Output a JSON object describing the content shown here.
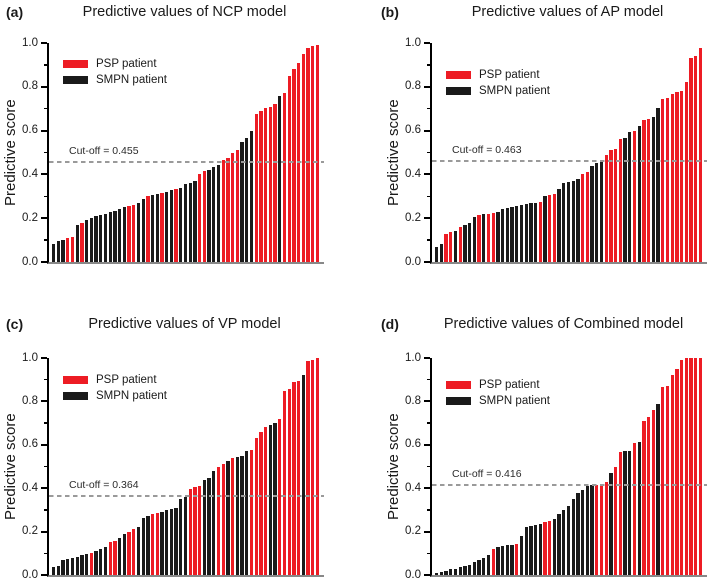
{
  "colors": {
    "psp": "#ed1c24",
    "smpn": "#1a1a1a",
    "axis": "#000000",
    "baseline": "#888888",
    "cutoff_line": "#9a9a9a"
  },
  "chart_data": {
    "type": "bar",
    "ylim": [
      0,
      1
    ],
    "grid": false,
    "yticks": [
      {
        "v": 0.0,
        "label": "0.0"
      },
      {
        "v": 0.2,
        "label": "0.2"
      },
      {
        "v": 0.4,
        "label": "0.4"
      },
      {
        "v": 0.6,
        "label": "0.6"
      },
      {
        "v": 0.8,
        "label": "0.8"
      },
      {
        "v": 1.0,
        "label": "1.0"
      }
    ],
    "yticks_minor": [
      0.1,
      0.3,
      0.5,
      0.7,
      0.9
    ],
    "legend": [
      {
        "label": "PSP patient",
        "group": "P"
      },
      {
        "label": "SMPN patient",
        "group": "S"
      }
    ],
    "panels": [
      {
        "letter": "(a)",
        "title": "Predictive values of NCP model",
        "ylabel": "Predictive score",
        "cutoff": 0.455,
        "cutoff_label": "Cut-off = 0.455",
        "values": [
          0.08,
          0.095,
          0.1,
          0.11,
          0.115,
          0.17,
          0.18,
          0.19,
          0.2,
          0.21,
          0.215,
          0.22,
          0.23,
          0.235,
          0.24,
          0.25,
          0.255,
          0.26,
          0.27,
          0.29,
          0.3,
          0.305,
          0.31,
          0.315,
          0.32,
          0.33,
          0.335,
          0.34,
          0.355,
          0.36,
          0.37,
          0.4,
          0.415,
          0.42,
          0.435,
          0.445,
          0.465,
          0.475,
          0.5,
          0.51,
          0.55,
          0.565,
          0.6,
          0.675,
          0.69,
          0.705,
          0.71,
          0.72,
          0.76,
          0.77,
          0.85,
          0.88,
          0.91,
          0.95,
          0.975,
          0.985,
          0.99
        ],
        "groups": [
          "S",
          "S",
          "S",
          "P",
          "P",
          "S",
          "P",
          "S",
          "S",
          "S",
          "S",
          "S",
          "S",
          "S",
          "S",
          "S",
          "P",
          "P",
          "S",
          "S",
          "P",
          "S",
          "S",
          "P",
          "S",
          "S",
          "P",
          "S",
          "S",
          "S",
          "S",
          "P",
          "P",
          "S",
          "S",
          "S",
          "P",
          "P",
          "P",
          "P",
          "S",
          "S",
          "S",
          "P",
          "P",
          "P",
          "P",
          "P",
          "S",
          "P",
          "P",
          "P",
          "P",
          "P",
          "P",
          "P",
          "P"
        ]
      },
      {
        "letter": "(b)",
        "title": "Predictive values of AP model",
        "ylabel": "Predictive score",
        "cutoff": 0.463,
        "cutoff_label": "Cut-off = 0.463",
        "values": [
          0.07,
          0.08,
          0.13,
          0.135,
          0.14,
          0.16,
          0.17,
          0.18,
          0.205,
          0.215,
          0.22,
          0.22,
          0.225,
          0.23,
          0.24,
          0.245,
          0.25,
          0.255,
          0.26,
          0.265,
          0.27,
          0.27,
          0.275,
          0.3,
          0.305,
          0.31,
          0.335,
          0.36,
          0.365,
          0.37,
          0.38,
          0.4,
          0.41,
          0.44,
          0.45,
          0.46,
          0.49,
          0.51,
          0.515,
          0.56,
          0.565,
          0.595,
          0.6,
          0.62,
          0.65,
          0.655,
          0.66,
          0.705,
          0.745,
          0.75,
          0.765,
          0.775,
          0.78,
          0.82,
          0.93,
          0.94,
          0.975
        ],
        "groups": [
          "S",
          "S",
          "P",
          "P",
          "S",
          "P",
          "S",
          "S",
          "S",
          "P",
          "S",
          "P",
          "P",
          "S",
          "S",
          "S",
          "S",
          "S",
          "S",
          "S",
          "S",
          "S",
          "P",
          "S",
          "P",
          "P",
          "S",
          "S",
          "S",
          "S",
          "S",
          "P",
          "P",
          "S",
          "S",
          "S",
          "P",
          "P",
          "P",
          "P",
          "S",
          "S",
          "P",
          "S",
          "P",
          "P",
          "S",
          "S",
          "P",
          "P",
          "P",
          "P",
          "P",
          "P",
          "P",
          "P",
          "P"
        ]
      },
      {
        "letter": "(c)",
        "title": "Predictive values of VP model",
        "ylabel": "Predictive score",
        "cutoff": 0.364,
        "cutoff_label": "Cut-off = 0.364",
        "values": [
          0.035,
          0.04,
          0.07,
          0.075,
          0.08,
          0.085,
          0.09,
          0.095,
          0.1,
          0.11,
          0.12,
          0.13,
          0.15,
          0.155,
          0.17,
          0.19,
          0.2,
          0.21,
          0.22,
          0.265,
          0.27,
          0.28,
          0.285,
          0.29,
          0.3,
          0.305,
          0.31,
          0.35,
          0.36,
          0.395,
          0.405,
          0.41,
          0.44,
          0.445,
          0.48,
          0.5,
          0.51,
          0.525,
          0.54,
          0.545,
          0.55,
          0.57,
          0.575,
          0.63,
          0.66,
          0.68,
          0.69,
          0.7,
          0.72,
          0.85,
          0.855,
          0.89,
          0.895,
          0.92,
          0.985,
          0.99,
          1.0
        ],
        "groups": [
          "S",
          "S",
          "S",
          "S",
          "S",
          "S",
          "S",
          "S",
          "P",
          "S",
          "S",
          "S",
          "P",
          "P",
          "S",
          "S",
          "P",
          "P",
          "S",
          "S",
          "S",
          "P",
          "P",
          "S",
          "S",
          "S",
          "S",
          "S",
          "S",
          "P",
          "P",
          "P",
          "S",
          "S",
          "S",
          "P",
          "P",
          "S",
          "P",
          "S",
          "S",
          "S",
          "P",
          "P",
          "P",
          "P",
          "S",
          "S",
          "P",
          "P",
          "P",
          "P",
          "P",
          "S",
          "P",
          "P",
          "P"
        ]
      },
      {
        "letter": "(d)",
        "title": "Predictive values of Combined model",
        "ylabel": "Predictive score",
        "cutoff": 0.416,
        "cutoff_label": "Cut-off = 0.416",
        "values": [
          0.01,
          0.015,
          0.02,
          0.03,
          0.03,
          0.035,
          0.04,
          0.045,
          0.06,
          0.07,
          0.08,
          0.09,
          0.12,
          0.13,
          0.135,
          0.14,
          0.14,
          0.145,
          0.18,
          0.22,
          0.225,
          0.23,
          0.235,
          0.245,
          0.25,
          0.26,
          0.28,
          0.3,
          0.32,
          0.35,
          0.38,
          0.39,
          0.41,
          0.415,
          0.415,
          0.42,
          0.43,
          0.47,
          0.5,
          0.565,
          0.57,
          0.57,
          0.61,
          0.615,
          0.71,
          0.73,
          0.76,
          0.79,
          0.865,
          0.87,
          0.92,
          0.95,
          0.99,
          1.0,
          1.0,
          1.0,
          1.0
        ],
        "groups": [
          "S",
          "S",
          "S",
          "S",
          "S",
          "S",
          "S",
          "S",
          "S",
          "S",
          "S",
          "S",
          "P",
          "S",
          "S",
          "S",
          "S",
          "P",
          "S",
          "S",
          "S",
          "S",
          "S",
          "P",
          "P",
          "S",
          "S",
          "S",
          "S",
          "S",
          "S",
          "S",
          "S",
          "S",
          "P",
          "P",
          "P",
          "S",
          "P",
          "P",
          "S",
          "S",
          "P",
          "S",
          "P",
          "P",
          "P",
          "S",
          "P",
          "P",
          "P",
          "P",
          "P",
          "P",
          "P",
          "P",
          "P"
        ]
      }
    ]
  }
}
